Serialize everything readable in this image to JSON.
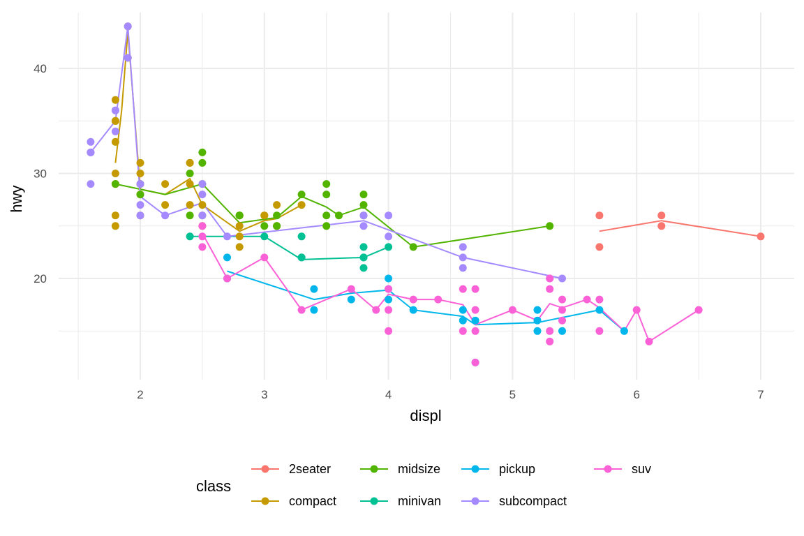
{
  "chart_data": {
    "type": "scatter",
    "xlabel": "displ",
    "ylabel": "hwy",
    "xlim": [
      1.6,
      7.0
    ],
    "ylim": [
      12,
      44
    ],
    "x_ticks": [
      2,
      3,
      4,
      5,
      6,
      7
    ],
    "y_ticks": [
      20,
      30,
      40
    ],
    "grid": true,
    "legend": {
      "title": "class",
      "position": "bottom",
      "order": [
        "2seater",
        "compact",
        "midsize",
        "minivan",
        "pickup",
        "subcompact",
        "suv"
      ]
    },
    "series": [
      {
        "name": "2seater",
        "color": "#F8766D",
        "points": [
          [
            5.7,
            26
          ],
          [
            5.7,
            23
          ],
          [
            6.2,
            26
          ],
          [
            6.2,
            25
          ],
          [
            7.0,
            24
          ]
        ],
        "smooth": [
          [
            5.7,
            24.5
          ],
          [
            6.2,
            25.5
          ],
          [
            7.0,
            24.0
          ]
        ]
      },
      {
        "name": "compact",
        "color": "#C49A00",
        "points": [
          [
            1.8,
            29
          ],
          [
            1.8,
            29
          ],
          [
            2.0,
            31
          ],
          [
            2.0,
            30
          ],
          [
            2.8,
            26
          ],
          [
            2.8,
            26
          ],
          [
            3.1,
            27
          ],
          [
            1.8,
            26
          ],
          [
            1.8,
            25
          ],
          [
            2.0,
            28
          ],
          [
            2.0,
            28
          ],
          [
            2.8,
            24
          ],
          [
            2.8,
            25
          ],
          [
            3.1,
            25
          ],
          [
            3.1,
            25
          ],
          [
            2.2,
            29
          ],
          [
            2.2,
            27
          ],
          [
            2.4,
            31
          ],
          [
            2.4,
            31
          ],
          [
            3.0,
            26
          ],
          [
            3.0,
            26
          ],
          [
            3.3,
            27
          ],
          [
            1.8,
            30
          ],
          [
            1.8,
            33
          ],
          [
            1.8,
            35
          ],
          [
            1.8,
            37
          ],
          [
            1.8,
            35
          ],
          [
            1.9,
            44
          ],
          [
            1.9,
            41
          ],
          [
            2.0,
            29
          ],
          [
            2.0,
            26
          ],
          [
            2.5,
            27
          ],
          [
            2.5,
            25
          ],
          [
            2.8,
            23
          ],
          [
            2.4,
            29
          ],
          [
            2.4,
            27
          ]
        ],
        "smooth": [
          [
            1.8,
            31
          ],
          [
            1.85,
            36
          ],
          [
            1.9,
            43.5
          ],
          [
            1.95,
            36
          ],
          [
            2.0,
            28.5
          ],
          [
            2.2,
            28.0
          ],
          [
            2.4,
            29.5
          ],
          [
            2.5,
            27.0
          ],
          [
            2.8,
            24.5
          ],
          [
            3.0,
            25.5
          ],
          [
            3.1,
            25.7
          ],
          [
            3.3,
            27.0
          ]
        ]
      },
      {
        "name": "midsize",
        "color": "#53B400",
        "points": [
          [
            1.8,
            29
          ],
          [
            2.0,
            29
          ],
          [
            2.0,
            28
          ],
          [
            2.4,
            30
          ],
          [
            2.4,
            26
          ],
          [
            2.5,
            32
          ],
          [
            2.5,
            31
          ],
          [
            2.5,
            29
          ],
          [
            2.5,
            26
          ],
          [
            2.8,
            26
          ],
          [
            2.8,
            26
          ],
          [
            3.0,
            25
          ],
          [
            3.1,
            26
          ],
          [
            3.1,
            25
          ],
          [
            3.3,
            28
          ],
          [
            3.5,
            29
          ],
          [
            3.5,
            28
          ],
          [
            3.5,
            26
          ],
          [
            3.5,
            25
          ],
          [
            3.6,
            26
          ],
          [
            3.8,
            28
          ],
          [
            3.8,
            27
          ],
          [
            3.8,
            26
          ],
          [
            4.2,
            23
          ],
          [
            5.3,
            25
          ]
        ],
        "smooth": [
          [
            1.8,
            29.0
          ],
          [
            2.0,
            28.5
          ],
          [
            2.2,
            28.0
          ],
          [
            2.5,
            29.0
          ],
          [
            2.8,
            25.3
          ],
          [
            3.1,
            25.8
          ],
          [
            3.3,
            27.8
          ],
          [
            3.5,
            26.8
          ],
          [
            3.6,
            26.0
          ],
          [
            3.8,
            26.8
          ],
          [
            4.2,
            23.0
          ],
          [
            5.3,
            25.0
          ]
        ]
      },
      {
        "name": "minivan",
        "color": "#00C094",
        "points": [
          [
            2.4,
            24
          ],
          [
            3.0,
            24
          ],
          [
            3.3,
            22
          ],
          [
            3.3,
            22
          ],
          [
            3.3,
            24
          ],
          [
            3.8,
            22
          ],
          [
            3.8,
            21
          ],
          [
            3.8,
            23
          ],
          [
            4.0,
            23
          ],
          [
            3.8,
            22
          ]
        ],
        "smooth": [
          [
            2.4,
            24.0
          ],
          [
            3.0,
            24.0
          ],
          [
            3.3,
            21.8
          ],
          [
            3.8,
            22.0
          ],
          [
            4.0,
            23.0
          ]
        ]
      },
      {
        "name": "pickup",
        "color": "#00B6EB",
        "points": [
          [
            2.7,
            20
          ],
          [
            2.7,
            22
          ],
          [
            3.4,
            19
          ],
          [
            3.4,
            17
          ],
          [
            3.7,
            18
          ],
          [
            4.0,
            20
          ],
          [
            4.0,
            19
          ],
          [
            4.0,
            18
          ],
          [
            4.2,
            17
          ],
          [
            4.6,
            17
          ],
          [
            4.6,
            16
          ],
          [
            4.7,
            16
          ],
          [
            4.7,
            12
          ],
          [
            5.2,
            16
          ],
          [
            5.2,
            17
          ],
          [
            5.2,
            15
          ],
          [
            5.4,
            15
          ],
          [
            5.7,
            17
          ],
          [
            5.9,
            15
          ]
        ],
        "smooth": [
          [
            2.7,
            20.7
          ],
          [
            3.4,
            18.0
          ],
          [
            3.7,
            18.6
          ],
          [
            4.0,
            18.9
          ],
          [
            4.2,
            17.0
          ],
          [
            4.6,
            16.4
          ],
          [
            4.7,
            15.6
          ],
          [
            5.2,
            15.8
          ],
          [
            5.7,
            17.0
          ],
          [
            5.9,
            15.0
          ]
        ]
      },
      {
        "name": "subcompact",
        "color": "#A58AFF",
        "points": [
          [
            1.6,
            33
          ],
          [
            1.6,
            32
          ],
          [
            1.6,
            32
          ],
          [
            1.6,
            29
          ],
          [
            1.6,
            32
          ],
          [
            1.8,
            34
          ],
          [
            1.8,
            36
          ],
          [
            1.8,
            36
          ],
          [
            1.9,
            44
          ],
          [
            1.9,
            41
          ],
          [
            2.0,
            29
          ],
          [
            2.0,
            26
          ],
          [
            2.0,
            27
          ],
          [
            2.2,
            26
          ],
          [
            2.5,
            28
          ],
          [
            2.5,
            26
          ],
          [
            2.5,
            29
          ],
          [
            2.7,
            24
          ],
          [
            3.8,
            26
          ],
          [
            3.8,
            25
          ],
          [
            4.0,
            26
          ],
          [
            4.0,
            24
          ],
          [
            4.6,
            21
          ],
          [
            4.6,
            22
          ],
          [
            4.6,
            23
          ],
          [
            5.4,
            20
          ],
          [
            5.3,
            20
          ]
        ],
        "smooth": [
          [
            1.6,
            32.0
          ],
          [
            1.8,
            35.0
          ],
          [
            1.9,
            44.0
          ],
          [
            2.0,
            27.8
          ],
          [
            2.2,
            26.0
          ],
          [
            2.5,
            27.2
          ],
          [
            2.7,
            24.0
          ],
          [
            3.8,
            25.5
          ],
          [
            4.6,
            22.0
          ],
          [
            5.4,
            20.0
          ]
        ]
      },
      {
        "name": "suv",
        "color": "#FB61D7",
        "points": [
          [
            2.5,
            25
          ],
          [
            2.5,
            24
          ],
          [
            2.5,
            23
          ],
          [
            2.7,
            20
          ],
          [
            3.0,
            22
          ],
          [
            3.3,
            17
          ],
          [
            3.7,
            19
          ],
          [
            3.9,
            17
          ],
          [
            4.0,
            19
          ],
          [
            4.0,
            17
          ],
          [
            4.0,
            15
          ],
          [
            4.2,
            18
          ],
          [
            4.4,
            18
          ],
          [
            4.6,
            19
          ],
          [
            4.6,
            15
          ],
          [
            4.7,
            19
          ],
          [
            4.7,
            17
          ],
          [
            4.7,
            15
          ],
          [
            4.7,
            12
          ],
          [
            5.0,
            17
          ],
          [
            5.3,
            20
          ],
          [
            5.3,
            19
          ],
          [
            5.3,
            15
          ],
          [
            5.3,
            14
          ],
          [
            5.4,
            18
          ],
          [
            5.4,
            17
          ],
          [
            5.4,
            16
          ],
          [
            5.6,
            18
          ],
          [
            5.7,
            18
          ],
          [
            5.7,
            15
          ],
          [
            6.0,
            17
          ],
          [
            6.1,
            14
          ],
          [
            6.5,
            17
          ]
        ],
        "smooth": [
          [
            2.5,
            24.3
          ],
          [
            2.7,
            20.0
          ],
          [
            3.0,
            22.0
          ],
          [
            3.3,
            17.0
          ],
          [
            3.7,
            19.0
          ],
          [
            3.9,
            17.0
          ],
          [
            4.0,
            18.5
          ],
          [
            4.2,
            18.0
          ],
          [
            4.4,
            18.0
          ],
          [
            4.6,
            17.5
          ],
          [
            4.7,
            15.6
          ],
          [
            5.0,
            17.0
          ],
          [
            5.2,
            16.0
          ],
          [
            5.3,
            17.6
          ],
          [
            5.4,
            17.2
          ],
          [
            5.6,
            18.0
          ],
          [
            5.7,
            17.2
          ],
          [
            5.9,
            15.0
          ],
          [
            6.0,
            17.0
          ],
          [
            6.1,
            14.0
          ],
          [
            6.5,
            17.0
          ]
        ]
      }
    ]
  }
}
